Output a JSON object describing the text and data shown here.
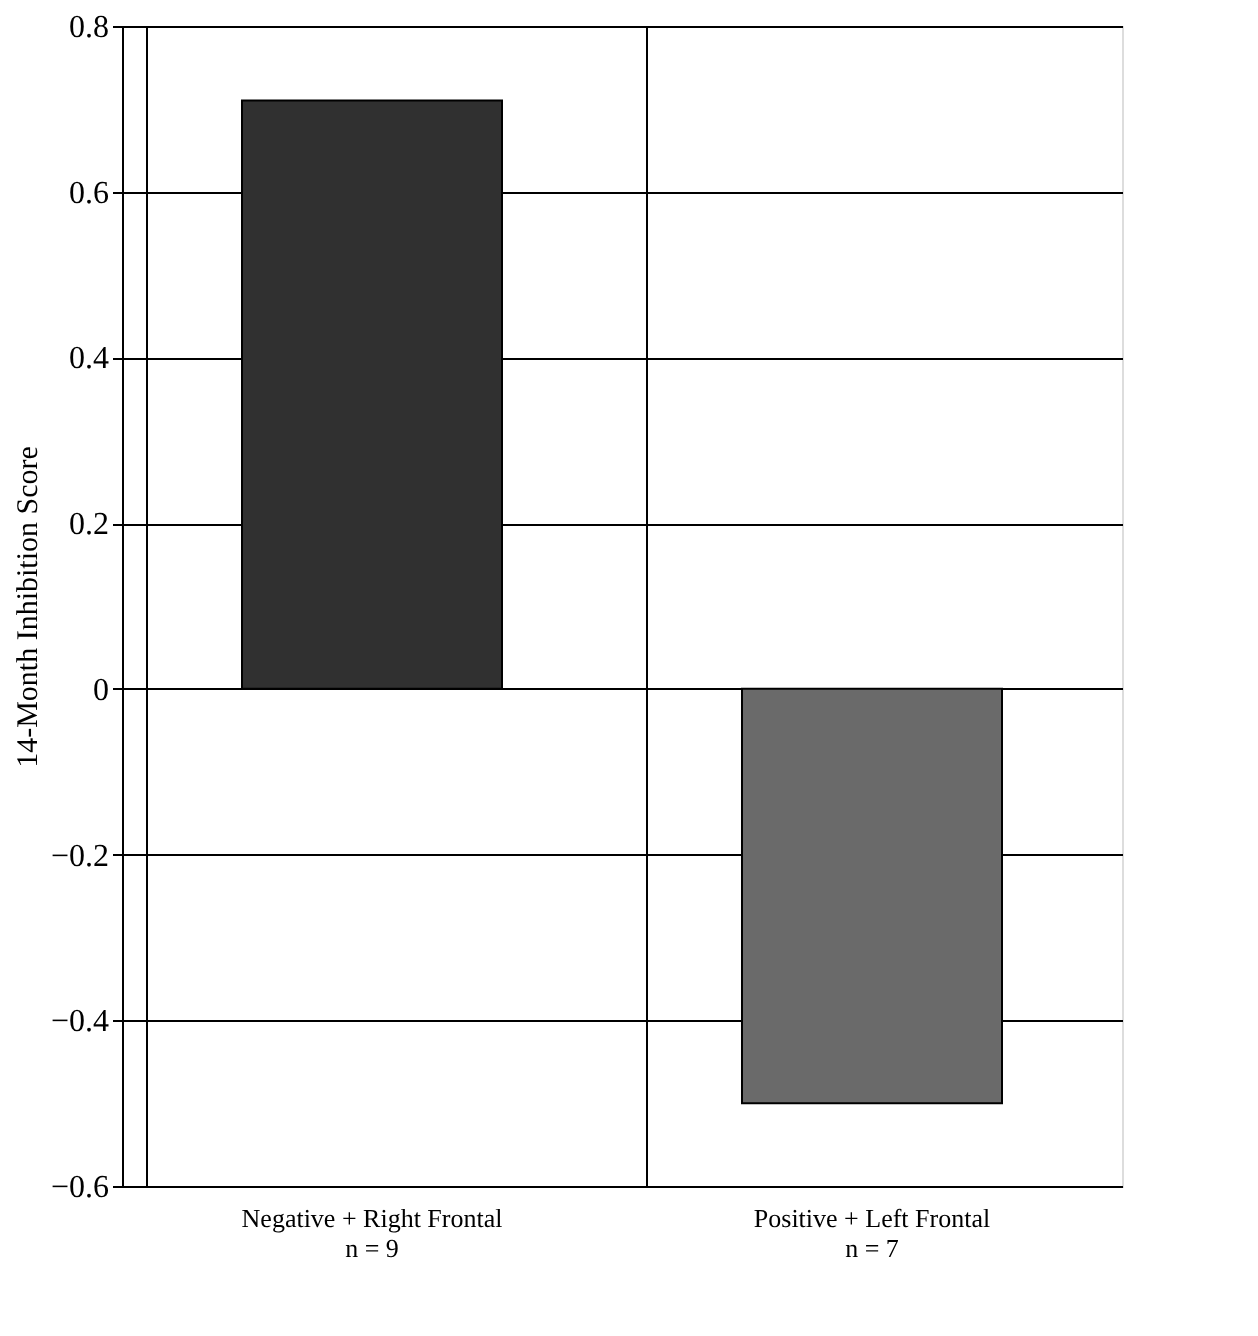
{
  "chart_data": {
    "type": "bar",
    "ylabel": "14-Month Inhibition Score",
    "categories": [
      "Negative + Right Frontal\nn = 9",
      "Positive + Left Frontal\nn = 7"
    ],
    "values": [
      0.71,
      -0.5
    ],
    "colors": [
      "#303030",
      "#6a6a6a"
    ],
    "ylim": [
      -0.6,
      0.8
    ],
    "yticks": [
      -0.6,
      -0.4,
      -0.2,
      0,
      0.2,
      0.4,
      0.6,
      0.8
    ],
    "grid": true
  }
}
